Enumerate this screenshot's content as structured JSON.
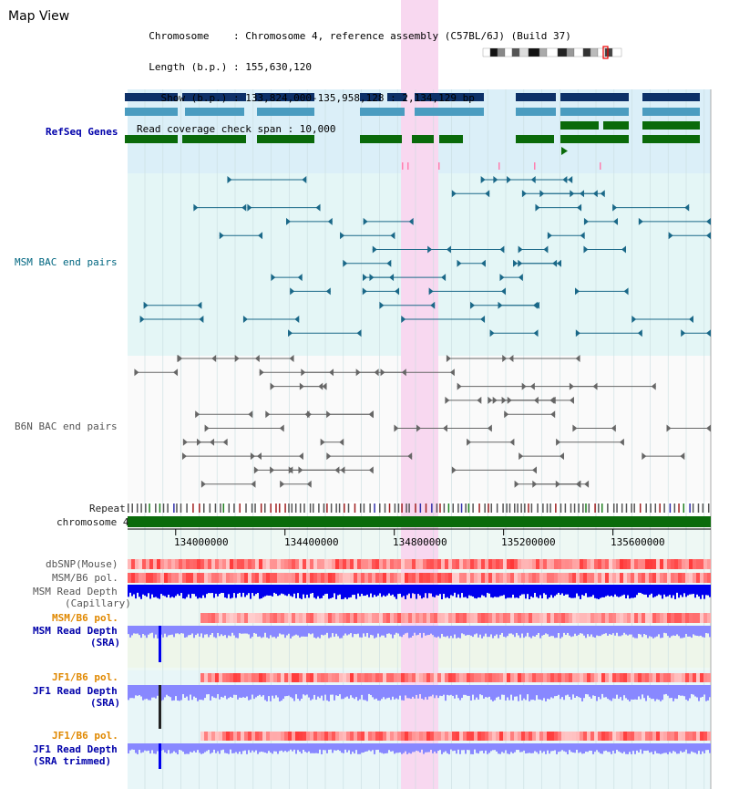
{
  "header": {
    "title": "Map View",
    "info_lines": [
      "  Chromosome    : Chromosome 4, reference assembly (C57BL/6J) (Build 37)",
      "  Length (b.p.) : 155,630,120",
      "    Show (b.p.) : 133,824,000-135,958,128 : 2,134,129 bp",
      "Read coverage check span : 10,000"
    ]
  },
  "tracks": {
    "refseq": "RefSeq Genes",
    "msm_bac": "MSM BAC end pairs",
    "b6n_bac": "B6N BAC end pairs",
    "repeat": "Repeat",
    "chromosome": "chromosome 4",
    "dbsnp": "dbSNP(Mouse)",
    "msm_b6_pol": "MSM/B6 pol.",
    "msm_depth_cap_1": "MSM Read Depth",
    "msm_depth_cap_2": "(Capillary)",
    "msm_b6_pol_sra": "MSM/B6 pol.",
    "msm_depth_sra_1": "MSM Read Depth",
    "msm_depth_sra_2": "(SRA)",
    "jf1_b6_pol_1": "JF1/B6 pol.",
    "jf1_depth_sra_1": "JF1 Read Depth",
    "jf1_depth_sra_2": "(SRA)",
    "jf1_b6_pol_2": "JF1/B6 pol.",
    "jf1_depth_trim_1": "JF1 Read Depth",
    "jf1_depth_trim_2": "(SRA trimmed)"
  },
  "axis": {
    "ticks": [
      "134000000",
      "134400000",
      "134800000",
      "135200000",
      "135600000"
    ],
    "tick_positions_bp": [
      134000000,
      134400000,
      134800000,
      135200000,
      135600000
    ],
    "range_bp": [
      133824000,
      135958128
    ]
  },
  "colors": {
    "refseq_bg": "#dbeff8",
    "bac_bg": "#e4f6f6",
    "highlight": "#f8d8f0",
    "gene_dark": "#0d3068",
    "gene_light": "#4a9cc0",
    "gene_green": "#0a6a0a",
    "msm_bac": "#1a6888",
    "b6n_bac": "#666666",
    "chromosome_bar": "#0b6b0b",
    "depth_dark": "#0000ee",
    "depth_light": "#8888ff"
  }
}
